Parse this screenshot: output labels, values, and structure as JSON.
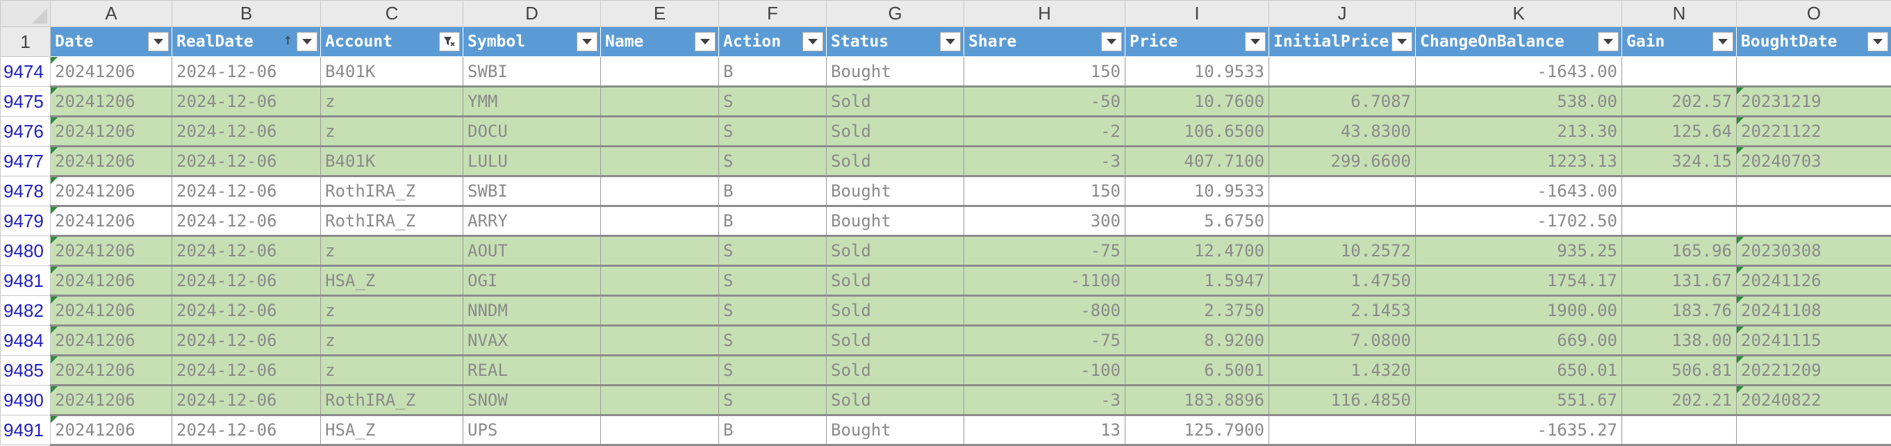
{
  "sheet": {
    "corner_label": "",
    "column_letters": [
      "A",
      "B",
      "C",
      "D",
      "E",
      "F",
      "G",
      "H",
      "I",
      "J",
      "K",
      "N",
      "O"
    ],
    "header_row_number": "1",
    "headers": [
      {
        "label": "Date",
        "icon": "dropdown"
      },
      {
        "label": "RealDate",
        "icon": "sorted-dropdown"
      },
      {
        "label": "Account",
        "icon": "filter-applied"
      },
      {
        "label": "Symbol",
        "icon": "dropdown"
      },
      {
        "label": "Name",
        "icon": "dropdown"
      },
      {
        "label": "Action",
        "icon": "dropdown"
      },
      {
        "label": "Status",
        "icon": "dropdown"
      },
      {
        "label": "Share",
        "icon": "dropdown"
      },
      {
        "label": "Price",
        "icon": "dropdown"
      },
      {
        "label": "InitialPrice",
        "icon": "dropdown"
      },
      {
        "label": "ChangeOnBalance",
        "icon": "dropdown"
      },
      {
        "label": "Gain",
        "icon": "dropdown"
      },
      {
        "label": "BoughtDate",
        "icon": "dropdown"
      }
    ],
    "sort_symbol": "↑",
    "colors": {
      "header_blue": "#5b9bd5",
      "sold_green": "#c6e0b4",
      "row_number_blue": "#1f1fbf",
      "flag_green": "#2e8b3e"
    },
    "rows": [
      {
        "row": "9474",
        "green": false,
        "cells": [
          "20241206",
          "2024-12-06",
          "B401K",
          "SWBI",
          "",
          "B",
          "Bought",
          "150",
          "10.9533",
          "",
          "-1643.00",
          "",
          ""
        ]
      },
      {
        "row": "9475",
        "green": true,
        "cells": [
          "20241206",
          "2024-12-06",
          "z",
          "YMM",
          "",
          "S",
          "Sold",
          "-50",
          "10.7600",
          "6.7087",
          "538.00",
          "202.57",
          "20231219"
        ]
      },
      {
        "row": "9476",
        "green": true,
        "cells": [
          "20241206",
          "2024-12-06",
          "z",
          "DOCU",
          "",
          "S",
          "Sold",
          "-2",
          "106.6500",
          "43.8300",
          "213.30",
          "125.64",
          "20221122"
        ]
      },
      {
        "row": "9477",
        "green": true,
        "cells": [
          "20241206",
          "2024-12-06",
          "B401K",
          "LULU",
          "",
          "S",
          "Sold",
          "-3",
          "407.7100",
          "299.6600",
          "1223.13",
          "324.15",
          "20240703"
        ]
      },
      {
        "row": "9478",
        "green": false,
        "cells": [
          "20241206",
          "2024-12-06",
          "RothIRA_Z",
          "SWBI",
          "",
          "B",
          "Bought",
          "150",
          "10.9533",
          "",
          "-1643.00",
          "",
          ""
        ]
      },
      {
        "row": "9479",
        "green": false,
        "cells": [
          "20241206",
          "2024-12-06",
          "RothIRA_Z",
          "ARRY",
          "",
          "B",
          "Bought",
          "300",
          "5.6750",
          "",
          "-1702.50",
          "",
          ""
        ]
      },
      {
        "row": "9480",
        "green": true,
        "cells": [
          "20241206",
          "2024-12-06",
          "z",
          "AOUT",
          "",
          "S",
          "Sold",
          "-75",
          "12.4700",
          "10.2572",
          "935.25",
          "165.96",
          "20230308"
        ]
      },
      {
        "row": "9481",
        "green": true,
        "cells": [
          "20241206",
          "2024-12-06",
          "HSA_Z",
          "OGI",
          "",
          "S",
          "Sold",
          "-1100",
          "1.5947",
          "1.4750",
          "1754.17",
          "131.67",
          "20241126"
        ]
      },
      {
        "row": "9482",
        "green": true,
        "cells": [
          "20241206",
          "2024-12-06",
          "z",
          "NNDM",
          "",
          "S",
          "Sold",
          "-800",
          "2.3750",
          "2.1453",
          "1900.00",
          "183.76",
          "20241108"
        ]
      },
      {
        "row": "9484",
        "green": true,
        "cells": [
          "20241206",
          "2024-12-06",
          "z",
          "NVAX",
          "",
          "S",
          "Sold",
          "-75",
          "8.9200",
          "7.0800",
          "669.00",
          "138.00",
          "20241115"
        ]
      },
      {
        "row": "9485",
        "green": true,
        "cells": [
          "20241206",
          "2024-12-06",
          "z",
          "REAL",
          "",
          "S",
          "Sold",
          "-100",
          "6.5001",
          "1.4320",
          "650.01",
          "506.81",
          "20221209"
        ]
      },
      {
        "row": "9490",
        "green": true,
        "cells": [
          "20241206",
          "2024-12-06",
          "RothIRA_Z",
          "SNOW",
          "",
          "S",
          "Sold",
          "-3",
          "183.8896",
          "116.4850",
          "551.67",
          "202.21",
          "20240822"
        ]
      },
      {
        "row": "9491",
        "green": false,
        "cells": [
          "20241206",
          "2024-12-06",
          "HSA_Z",
          "UPS",
          "",
          "B",
          "Bought",
          "13",
          "125.7900",
          "",
          "-1635.27",
          "",
          ""
        ]
      }
    ]
  }
}
